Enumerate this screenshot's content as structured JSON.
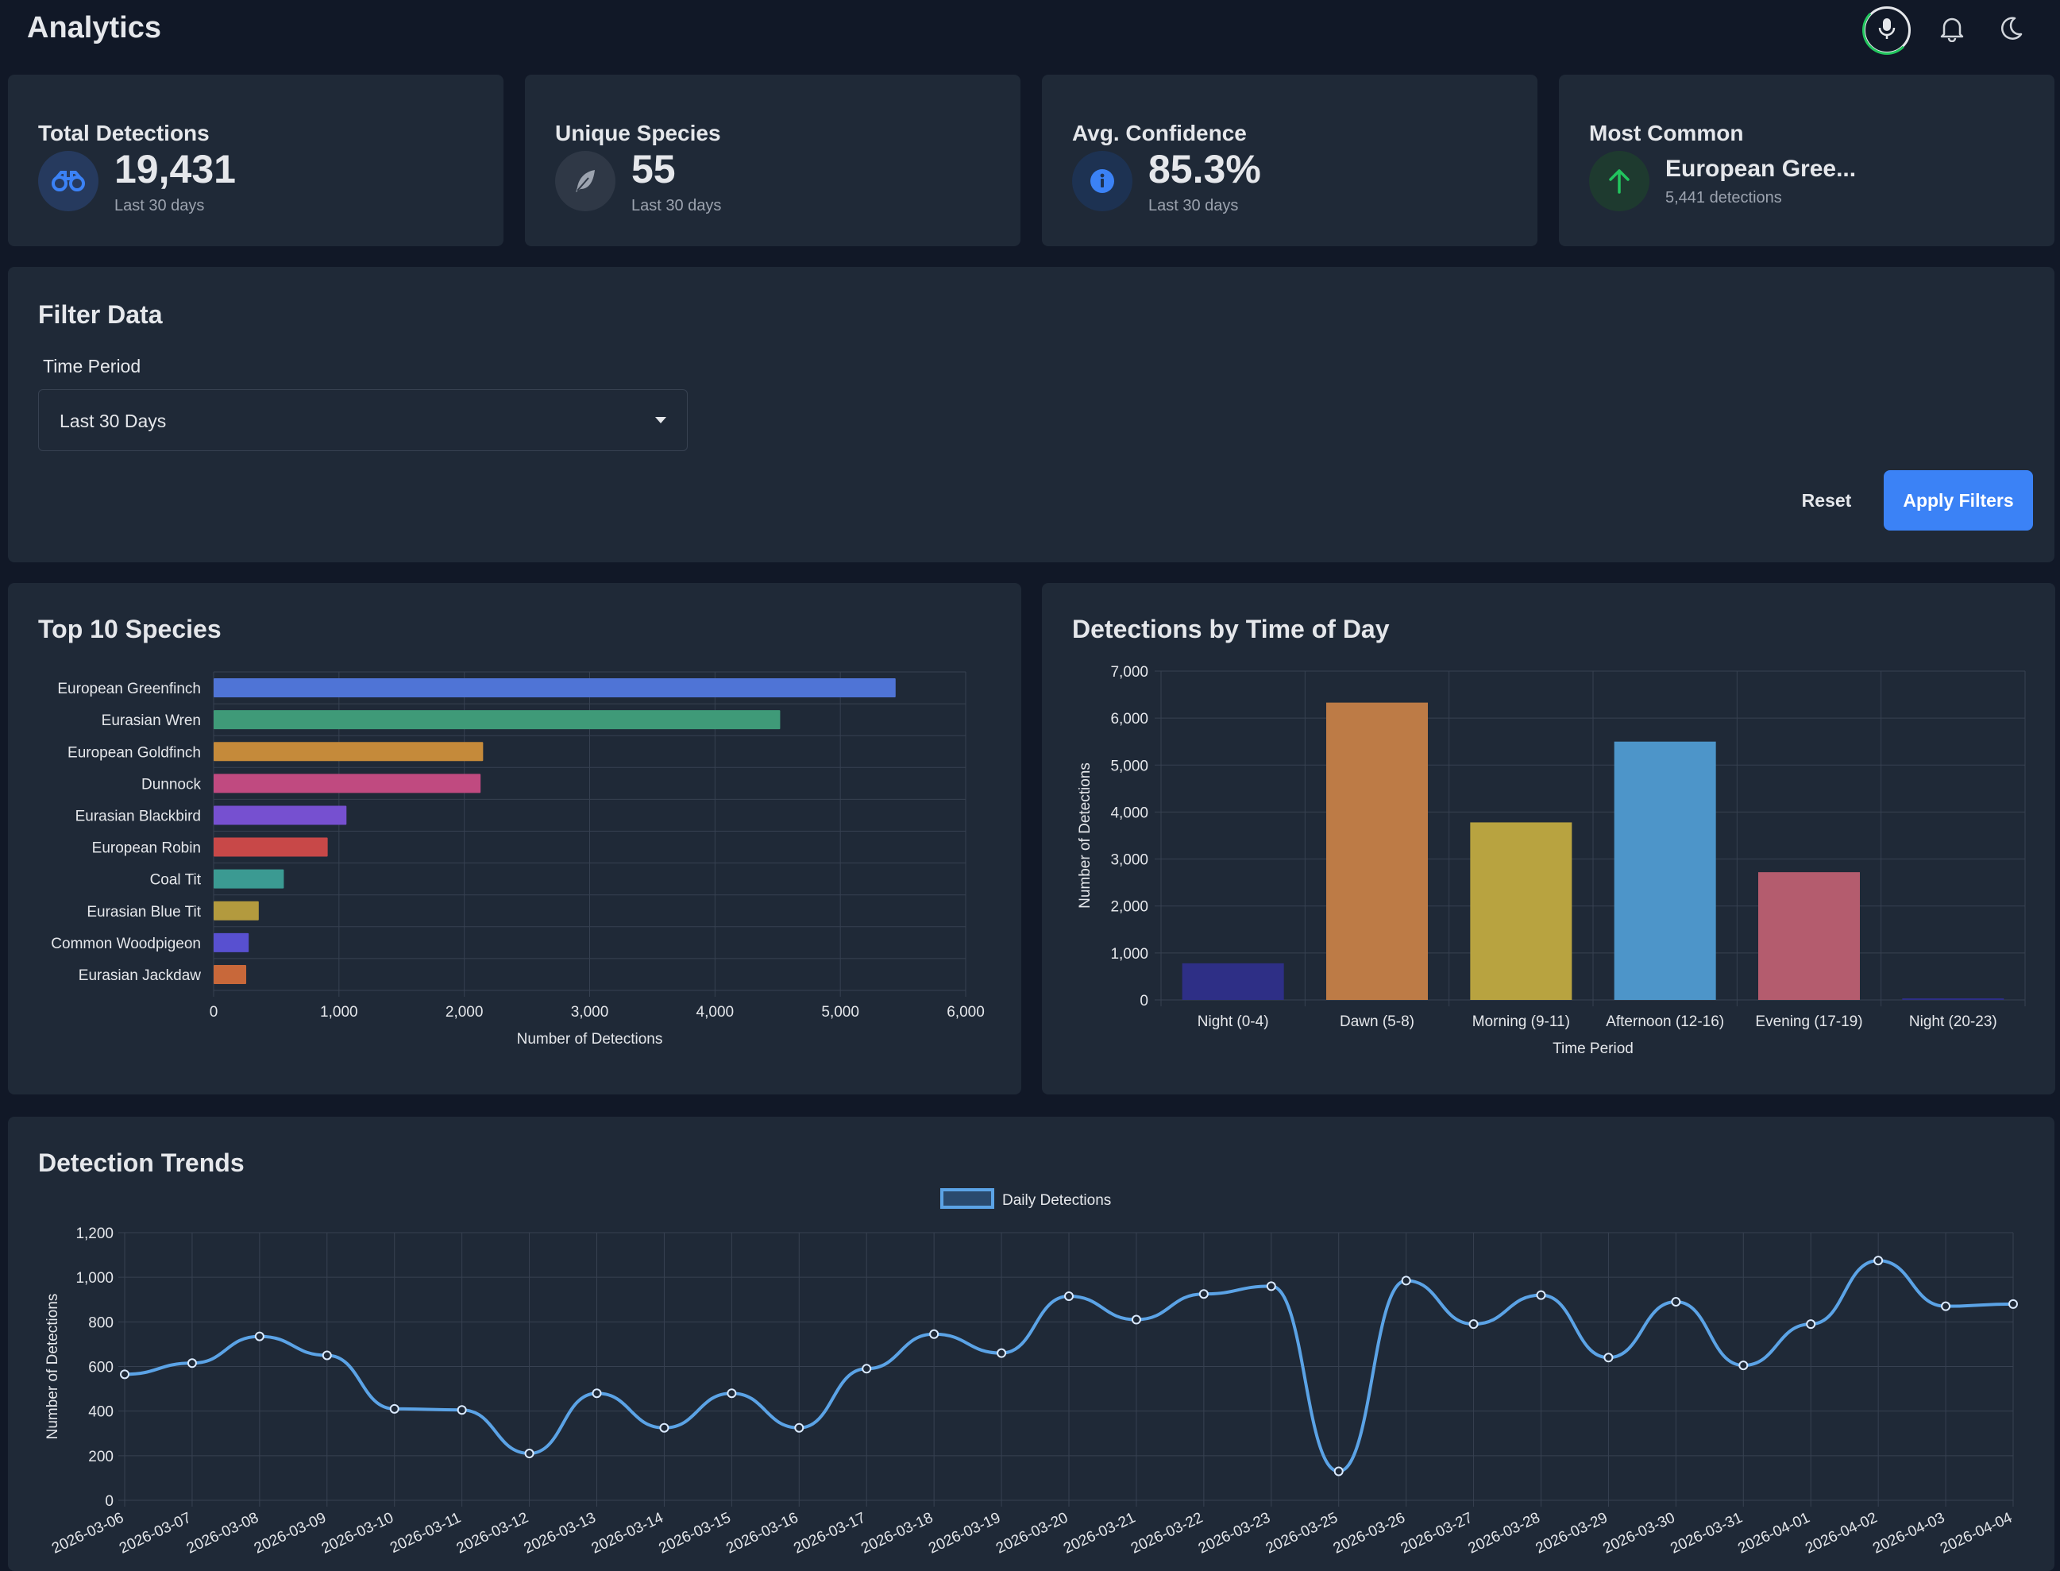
{
  "app": {
    "title": "Analytics"
  },
  "header_icons": [
    "microphone-icon",
    "bell-icon",
    "moon-icon"
  ],
  "stats": [
    {
      "title": "Total Detections",
      "value": "19,431",
      "sub": "Last 30 days",
      "icon": "binoculars-icon",
      "color": "#3b82f6"
    },
    {
      "title": "Unique Species",
      "value": "55",
      "sub": "Last 30 days",
      "icon": "feather-icon",
      "color": "#9ca3af"
    },
    {
      "title": "Avg. Confidence",
      "value": "85.3%",
      "sub": "Last 30 days",
      "icon": "info-icon",
      "color": "#3b82f6"
    },
    {
      "title": "Most Common",
      "value": "European Gree...",
      "sub": "5,441 detections",
      "icon": "arrow-up-icon",
      "color": "#22c55e"
    }
  ],
  "filter": {
    "title": "Filter Data",
    "time_period_label": "Time Period",
    "time_period_value": "Last 30 Days",
    "reset_label": "Reset",
    "apply_label": "Apply Filters"
  },
  "chart_data": [
    {
      "type": "bar",
      "orientation": "horizontal",
      "title": "Top 10 Species",
      "xlabel": "Number of Detections",
      "ylabel": "",
      "xlim": [
        0,
        6000
      ],
      "ticks": [
        "0",
        "1,000",
        "2,000",
        "3,000",
        "4,000",
        "5,000",
        "6,000"
      ],
      "categories": [
        "European Greenfinch",
        "Eurasian Wren",
        "European Goldfinch",
        "Dunnock",
        "Eurasian Blackbird",
        "European Robin",
        "Coal Tit",
        "Eurasian Blue Tit",
        "Common Woodpigeon",
        "Eurasian Jackdaw"
      ],
      "values": [
        5441,
        4520,
        2150,
        2130,
        1060,
        910,
        560,
        360,
        280,
        260
      ],
      "colors": [
        "#4f74d6",
        "#3f9a78",
        "#c58a3a",
        "#c04a80",
        "#7650d0",
        "#c84848",
        "#3b9a92",
        "#b39a3e",
        "#5850d0",
        "#c8683a"
      ],
      "grid": true
    },
    {
      "type": "bar",
      "title": "Detections by Time of Day",
      "xlabel": "Time Period",
      "ylabel": "Number of Detections",
      "ylim": [
        0,
        7000
      ],
      "ticks": [
        "0",
        "1,000",
        "2,000",
        "3,000",
        "4,000",
        "5,000",
        "6,000",
        "7,000"
      ],
      "categories": [
        "Night (0-4)",
        "Dawn (5-8)",
        "Morning (9-11)",
        "Afternoon (12-16)",
        "Evening (17-19)",
        "Night (20-23)"
      ],
      "values": [
        780,
        6330,
        3780,
        5500,
        2720,
        30
      ],
      "colors": [
        "#2e2f86",
        "#bd7b46",
        "#b8a340",
        "#4d95c9",
        "#b45c6e",
        "#2e2f86"
      ],
      "grid": true
    },
    {
      "type": "line",
      "title": "Detection Trends",
      "xlabel": "",
      "ylabel": "Number of Detections",
      "ylim": [
        0,
        1200
      ],
      "ticks": [
        "0",
        "200",
        "400",
        "600",
        "800",
        "1,000",
        "1,200"
      ],
      "x": [
        "2026-03-06",
        "2026-03-07",
        "2026-03-08",
        "2026-03-09",
        "2026-03-10",
        "2026-03-11",
        "2026-03-12",
        "2026-03-13",
        "2026-03-14",
        "2026-03-15",
        "2026-03-16",
        "2026-03-17",
        "2026-03-18",
        "2026-03-19",
        "2026-03-20",
        "2026-03-21",
        "2026-03-22",
        "2026-03-23",
        "2026-03-25",
        "2026-03-26",
        "2026-03-27",
        "2026-03-28",
        "2026-03-29",
        "2026-03-30",
        "2026-03-31",
        "2026-04-01",
        "2026-04-02",
        "2026-04-03",
        "2026-04-04"
      ],
      "series": [
        {
          "name": "Daily Detections",
          "color": "#5ba3e6",
          "values": [
            565,
            615,
            735,
            650,
            410,
            405,
            210,
            480,
            325,
            480,
            325,
            590,
            745,
            660,
            915,
            810,
            925,
            960,
            130,
            985,
            790,
            920,
            640,
            890,
            605,
            790,
            1075,
            870,
            880
          ]
        }
      ],
      "legend": "top-center",
      "grid": true
    }
  ]
}
